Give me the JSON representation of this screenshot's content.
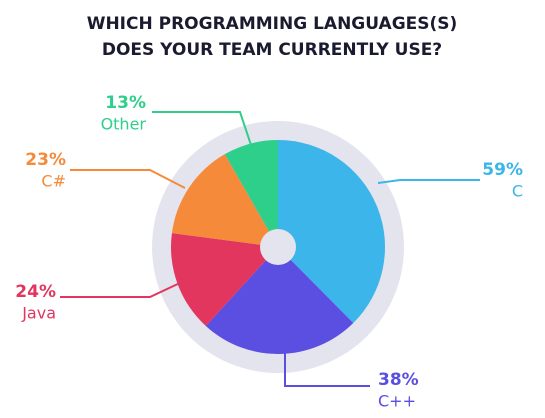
{
  "chart_data": {
    "type": "pie",
    "title": [
      "WHICH PROGRAMMING LANGUAGES(S)",
      "DOES YOUR TEAM CURRENTLY USE?"
    ],
    "categories": [
      "C",
      "C++",
      "Java",
      "C#",
      "Other"
    ],
    "values": [
      59,
      38,
      24,
      23,
      13
    ],
    "value_labels": [
      "59%",
      "38%",
      "24%",
      "23%",
      "13%"
    ],
    "colors": [
      "#3bb5ea",
      "#5a4fe0",
      "#e2365f",
      "#f58a3a",
      "#2ecf8a"
    ]
  }
}
